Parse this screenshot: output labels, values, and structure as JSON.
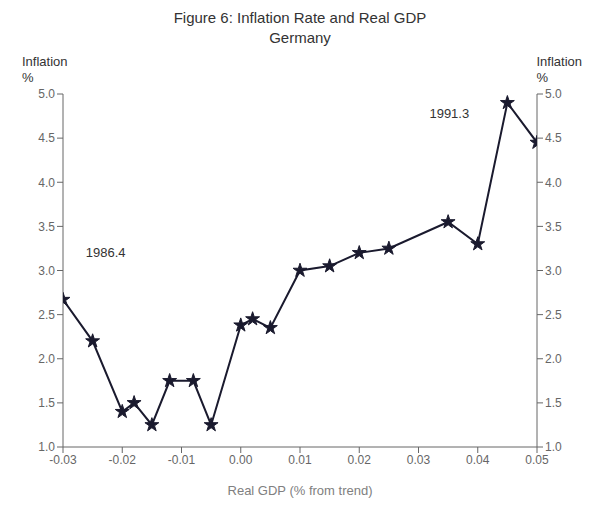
{
  "chart_data": {
    "type": "line",
    "title": "Figure 6: Inflation Rate and Real GDP",
    "subtitle": "Germany",
    "xlabel": "Real GDP (% from trend)",
    "ylabel": [
      "Inflation",
      "%"
    ],
    "y2label": [
      "Inflation",
      "%"
    ],
    "x": [
      -0.03,
      -0.025,
      -0.02,
      -0.018,
      -0.015,
      -0.012,
      -0.008,
      -0.005,
      0.0,
      0.002,
      0.005,
      0.01,
      0.015,
      0.02,
      0.025,
      0.035,
      0.04,
      0.045,
      0.05
    ],
    "values": [
      2.67,
      2.2,
      1.4,
      1.5,
      1.25,
      1.75,
      1.75,
      1.25,
      2.38,
      2.45,
      2.35,
      3.0,
      3.05,
      3.2,
      3.25,
      3.55,
      3.3,
      4.9,
      4.45
    ],
    "color": "#1a1a2e",
    "marker": "star",
    "xlim": [
      -0.03,
      0.05
    ],
    "xticks": [
      -0.03,
      -0.02,
      -0.01,
      {
        "value": 0.0,
        "label": "0.00"
      },
      0.01,
      0.02,
      0.03,
      0.04,
      0.05
    ],
    "ylim": [
      1.0,
      5.0
    ],
    "yticks": [
      {
        "value": 1.0,
        "label": "1.0"
      },
      1.5,
      {
        "value": 2.0,
        "label": "2.0"
      },
      2.5,
      {
        "value": 3.0,
        "label": "3.0"
      },
      3.5,
      {
        "value": 4.0,
        "label": "4.0"
      },
      4.5,
      {
        "value": 5.0,
        "label": "5.0"
      }
    ],
    "y2lim": [
      1.0,
      5.0
    ],
    "y2ticks": [
      {
        "value": 1.0,
        "label": "1.0"
      },
      1.5,
      {
        "value": 2.0,
        "label": "2.0"
      },
      2.5,
      {
        "value": 3.0,
        "label": "3.0"
      },
      3.5,
      {
        "value": 4.0,
        "label": "4.0"
      },
      4.5,
      {
        "value": 5.0,
        "label": "5.0"
      }
    ],
    "annotations": [
      {
        "text": "1986.4",
        "x": -0.027,
        "y": 3.2
      },
      {
        "text": "1991.3",
        "x": 0.031,
        "y": 4.78
      }
    ],
    "grid": false
  }
}
